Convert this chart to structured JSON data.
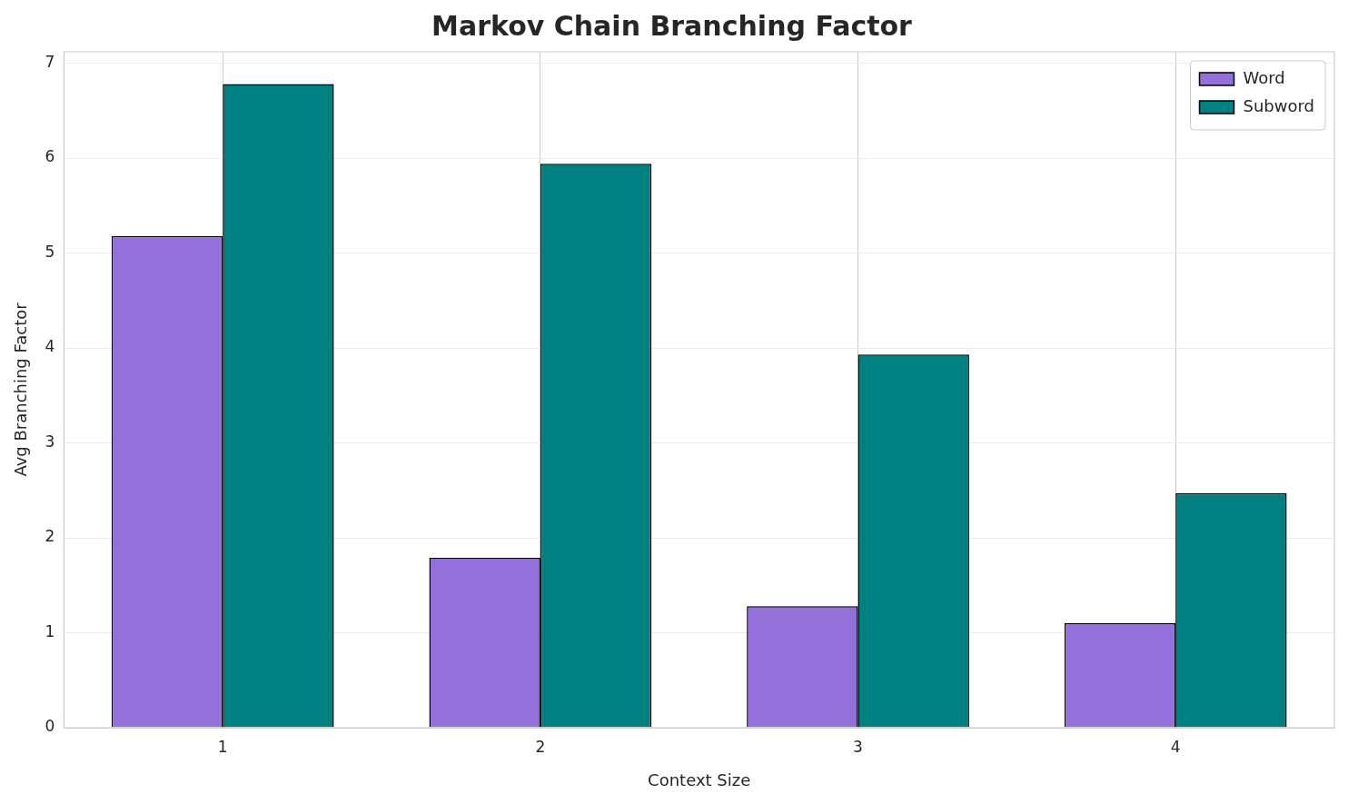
{
  "chart_data": {
    "type": "bar",
    "title": "Markov Chain Branching Factor",
    "xlabel": "Context Size",
    "ylabel": "Avg Branching Factor",
    "categories": [
      "1",
      "2",
      "3",
      "4"
    ],
    "series": [
      {
        "name": "Word",
        "color": "#9370db",
        "values": [
          5.18,
          1.79,
          1.28,
          1.1
        ]
      },
      {
        "name": "Subword",
        "color": "#008080",
        "values": [
          6.78,
          5.94,
          3.93,
          2.47
        ]
      }
    ],
    "ylim": [
      0,
      7.12
    ],
    "yticks": [
      0,
      1,
      2,
      3,
      4,
      5,
      6,
      7
    ],
    "grid": true,
    "legend": "top right"
  }
}
